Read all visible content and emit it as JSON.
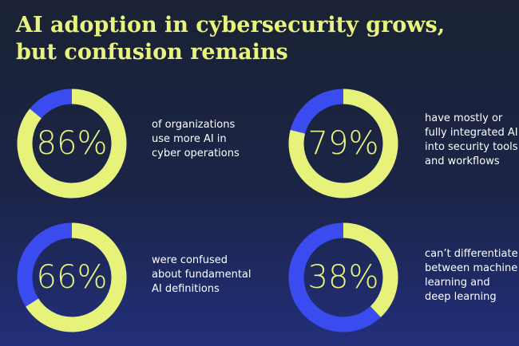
{
  "title": [
    "AI adoption in cybersecurity grows,",
    "but confusion remains"
  ],
  "chart_data": [
    {
      "type": "donut",
      "values": [
        86
      ],
      "value_labels": [
        "86%"
      ],
      "color": "#e6f27a",
      "track_color": "#3a4cf0",
      "caption": [
        "of organizations",
        "use more AI in",
        "cyber operations"
      ]
    },
    {
      "type": "donut",
      "values": [
        79
      ],
      "value_labels": [
        "79%"
      ],
      "color": "#e6f27a",
      "track_color": "#3a4cf0",
      "caption": [
        "have mostly or",
        "fully integrated AI",
        "into security tools",
        "and workflows"
      ]
    },
    {
      "type": "donut",
      "values": [
        66
      ],
      "value_labels": [
        "66%"
      ],
      "color": "#e6f27a",
      "track_color": "#3a4cf0",
      "caption": [
        "were confused",
        "about fundamental",
        "AI definitions"
      ]
    },
    {
      "type": "donut",
      "values": [
        38
      ],
      "value_labels": [
        "38%"
      ],
      "color": "#e6f27a",
      "track_color": "#3a4cf0",
      "caption": [
        "can’t differentiate",
        "between machine",
        "learning and",
        "deep learning"
      ]
    }
  ]
}
